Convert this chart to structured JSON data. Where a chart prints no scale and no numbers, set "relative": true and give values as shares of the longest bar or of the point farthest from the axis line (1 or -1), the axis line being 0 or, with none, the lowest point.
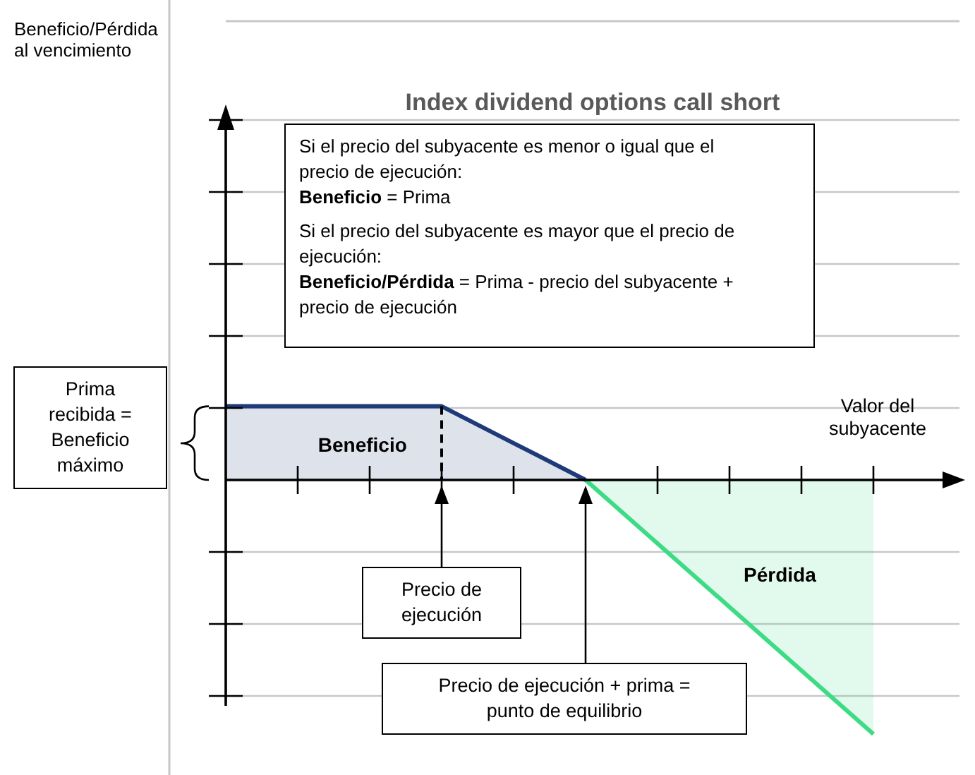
{
  "chart_data": {
    "type": "area",
    "title": "Index dividend options call short",
    "xlabel": "Valor del subyacente",
    "relative": true,
    "grid": "y",
    "categories": [
      null,
      null,
      null,
      null,
      null,
      null,
      null,
      null,
      null,
      null
    ],
    "series": [
      {
        "name": "Beneficio",
        "color": "#1f3a78",
        "values": [
          0.29,
          0.29,
          0.29,
          0.29,
          0.145,
          0,
          null,
          null,
          null,
          null
        ]
      },
      {
        "name": "Pérdida",
        "color": "#3ddc84",
        "values": [
          null,
          null,
          null,
          null,
          null,
          0,
          -0.25,
          -0.5,
          -0.75,
          -1
        ]
      }
    ],
    "annotations": [
      "Si el precio del subyacente es menor o igual que el precio de ejecución:",
      "Beneficio = Prima",
      "Si el precio del subyacente es mayor que el precio de ejecución:",
      "Beneficio/Pérdida = Prima - precio del subyacente + precio de ejecución",
      "Prima recibida = Beneficio máximo",
      "Precio de ejecución",
      "Precio de ejecución + prima = punto de equilibrio",
      "Beneficio/Pérdida al vencimiento"
    ]
  }
}
